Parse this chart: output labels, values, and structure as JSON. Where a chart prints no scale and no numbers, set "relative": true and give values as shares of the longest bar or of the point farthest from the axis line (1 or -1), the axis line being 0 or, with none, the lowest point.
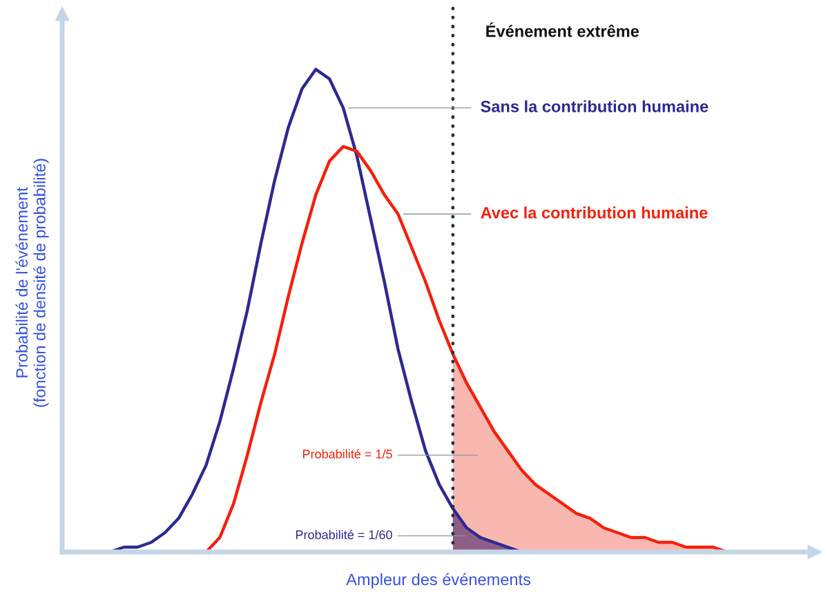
{
  "chart_data": {
    "type": "line",
    "relative": true,
    "xlabel": "Ampleur des événements",
    "ylabel": "Probabilité de l'événement\n(fonction de densité de probabilité)",
    "categories": [
      null,
      null,
      null,
      null,
      null,
      null,
      null,
      null,
      null,
      null,
      null,
      null,
      null,
      null,
      null,
      null,
      null,
      null,
      null,
      null,
      null,
      null,
      null,
      null,
      null,
      null,
      null,
      null,
      null,
      null,
      null,
      null,
      null,
      null,
      null,
      null,
      null,
      null,
      null,
      null,
      null,
      null,
      null,
      null,
      null,
      null,
      null,
      null,
      null,
      null,
      null,
      null,
      null,
      null
    ],
    "series": [
      {
        "type": "area",
        "color": "#f8b8b0",
        "values": [
          null,
          null,
          null,
          null,
          null,
          null,
          null,
          null,
          null,
          null,
          null,
          null,
          null,
          null,
          null,
          null,
          null,
          null,
          null,
          null,
          null,
          null,
          null,
          null,
          null,
          null,
          null,
          null,
          0.41,
          0.35,
          0.3,
          0.25,
          0.21,
          0.17,
          0.14,
          0.12,
          0.1,
          0.08,
          0.07,
          0.05,
          0.04,
          0.03,
          0.03,
          0.02,
          0.02,
          0.01,
          0.01,
          0.01,
          0,
          0,
          0,
          0,
          0,
          0
        ]
      },
      {
        "type": "area",
        "color": "#8e5f86",
        "values": [
          null,
          null,
          null,
          null,
          null,
          null,
          null,
          null,
          null,
          null,
          null,
          null,
          null,
          null,
          null,
          null,
          null,
          null,
          null,
          null,
          null,
          null,
          null,
          null,
          null,
          null,
          null,
          null,
          0.09,
          0.05,
          0.03,
          0.02,
          0.01,
          0,
          0,
          0,
          0,
          0,
          0,
          0,
          0,
          0,
          0,
          0,
          0,
          0,
          0,
          0,
          0,
          0,
          0,
          0,
          0,
          0
        ]
      },
      {
        "name": "Sans la contribution humaine",
        "color": "#2b2a92",
        "values": [
          null,
          null,
          0,
          0,
          0.01,
          0.01,
          0.02,
          0.04,
          0.07,
          0.12,
          0.18,
          0.27,
          0.38,
          0.5,
          0.64,
          0.77,
          0.88,
          0.96,
          1.0,
          0.98,
          0.92,
          0.82,
          0.69,
          0.56,
          0.42,
          0.31,
          0.21,
          0.14,
          0.09,
          0.05,
          0.03,
          0.02,
          0.01,
          0,
          0,
          null,
          null,
          null,
          null,
          null,
          null,
          null,
          null,
          null,
          null,
          null,
          null,
          null,
          null,
          null,
          null,
          null,
          null,
          null
        ]
      },
      {
        "name": "Avec la contribution humaine",
        "color": "#f4200c",
        "values": [
          null,
          null,
          null,
          null,
          null,
          null,
          null,
          null,
          null,
          0,
          0,
          0.03,
          0.1,
          0.2,
          0.31,
          0.41,
          0.53,
          0.64,
          0.74,
          0.81,
          0.84,
          0.83,
          0.79,
          0.74,
          0.7,
          0.63,
          0.56,
          0.48,
          0.41,
          0.35,
          0.3,
          0.25,
          0.21,
          0.17,
          0.14,
          0.12,
          0.1,
          0.08,
          0.07,
          0.05,
          0.04,
          0.03,
          0.03,
          0.02,
          0.02,
          0.01,
          0.01,
          0.01,
          0,
          0,
          null,
          null,
          null,
          null
        ]
      }
    ],
    "annotations": [
      "Événement extrême",
      "Probabilité = 1/5",
      "Probabilité = 1/60"
    ],
    "legend": false,
    "tick_labels": false
  }
}
